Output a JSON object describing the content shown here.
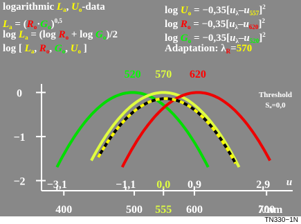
{
  "header": {
    "line1_left": "logarithmic Lₐ, Uₒ-data",
    "line1_right": "log Uₒ = −0,35[uλ−u557]²",
    "line2_left": "Lₐ = (Rₒ·Gₒ)^0,5",
    "line2_right": "log Rₒ = −0,35[uλ−u620]²",
    "line3_left": "log Lₐ = (log Rₒ + log Gₒ)/2",
    "line3_right": "log Gₒ = −0,35[uλ−u520]²",
    "line4_left": "log [ Lₐ, Rₒ, Gₒ, Uₒ ]",
    "line4_right": "Adaptation: λR=570"
  },
  "labels": {
    "threshold": "Threshold",
    "threshold_sub": "Sₐ=0,0",
    "u_axis": "u",
    "lambda_axis": "λ/nm",
    "footer": "TN330−1N"
  },
  "colors": {
    "background": "#888888",
    "green": "#00dd00",
    "yellow": "#e0ff40",
    "red": "#ee0000",
    "dashed_black": "#000000",
    "dashed_yellow": "#ffff00"
  },
  "chart_data": {
    "type": "line",
    "x_unit": "u",
    "ylim": [
      -2.15,
      0.1
    ],
    "xlim_u": [
      -3.55,
      3.6
    ],
    "y_ticks": [
      {
        "value": 0,
        "label": "0"
      },
      {
        "value": -1,
        "label": "−1"
      },
      {
        "value": -2,
        "label": "−2"
      }
    ],
    "u_ticks": [
      {
        "value": -3.1,
        "label": "−3,1",
        "color": "#ffffff"
      },
      {
        "value": -1.1,
        "label": "−1,1",
        "color": "#ffffff"
      },
      {
        "value": 0.0,
        "label": "0,0",
        "color": "#e0ff40"
      },
      {
        "value": 0.9,
        "label": "0,9",
        "color": "#ffffff"
      },
      {
        "value": 2.9,
        "label": "2,9",
        "color": "#ffffff"
      }
    ],
    "lambda_ticks": [
      {
        "u": -2.9,
        "label": "400",
        "color": "#ffffff"
      },
      {
        "u": -0.85,
        "label": "500",
        "color": "#ffffff"
      },
      {
        "u": 0.0,
        "label": "555",
        "color": "#e0ff40"
      },
      {
        "u": 0.9,
        "label": "600",
        "color": "#ffffff"
      },
      {
        "u": 3.0,
        "label": "700",
        "color": "#ffffff"
      }
    ],
    "peak_labels": [
      {
        "u": -0.9,
        "label": "520",
        "color": "#00ff00"
      },
      {
        "u": 0.0,
        "label": "570",
        "color": "#e0ff40"
      },
      {
        "u": 1.0,
        "label": "620",
        "color": "#ff0000"
      }
    ],
    "series": [
      {
        "name": "Gₒ",
        "center_u": -0.9,
        "coef": -0.35,
        "range_u": [
          -3.1,
          1.3
        ],
        "color": "#00dd00",
        "style": "solid"
      },
      {
        "name": "Uₒ",
        "center_u": 0.0,
        "coef": -0.35,
        "range_u": [
          -2.1,
          2.2
        ],
        "color": "#e0ff40",
        "style": "solid"
      },
      {
        "name": "Rₒ",
        "center_u": 1.0,
        "coef": -0.35,
        "range_u": [
          -1.2,
          3.1
        ],
        "color": "#ee0000",
        "style": "solid"
      },
      {
        "name": "Lₐ",
        "center_u": 0.05,
        "coef": -0.35,
        "offset": -0.14,
        "range_u": [
          -1.9,
          2.1
        ],
        "color": "#000000",
        "style": "dashed"
      }
    ]
  }
}
